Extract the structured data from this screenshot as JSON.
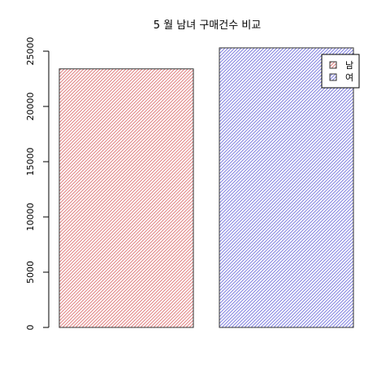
{
  "chart_data": {
    "type": "bar",
    "title": "5 월 남녀 구매건수 비교",
    "xlabel": "",
    "ylabel": "",
    "categories": [
      "남",
      "여"
    ],
    "values": [
      23400,
      25300
    ],
    "colors": [
      "#e08080",
      "#8080e0"
    ],
    "border_color": "#333333",
    "ylim": [
      0,
      25000
    ],
    "yticks": [
      0,
      5000,
      10000,
      15000,
      20000,
      25000
    ],
    "grid": false,
    "fill_pattern": "diagonal-hatch",
    "legend": {
      "position": "top-right",
      "entries": [
        "남",
        "여"
      ]
    }
  }
}
